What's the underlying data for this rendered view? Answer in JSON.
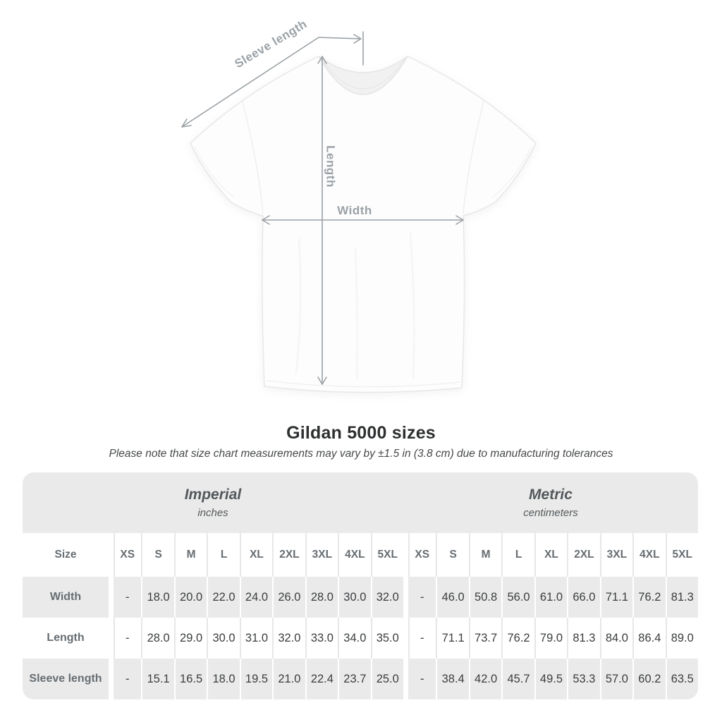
{
  "title": "Gildan 5000 sizes",
  "subtitle": "Please note that size chart measurements may vary by ±1.5 in (3.8 cm) due to manufacturing tolerances",
  "diagram": {
    "sleeve_label": "Sleeve length",
    "length_label": "Length",
    "width_label": "Width",
    "line_color": "#9ba1a6",
    "shirt_color": "#fdfdfd"
  },
  "table": {
    "corner_label": "Size",
    "band_color": "#eaeaea",
    "sections": [
      {
        "name": "Imperial",
        "unit": "inches"
      },
      {
        "name": "Metric",
        "unit": "centimeters"
      }
    ],
    "sizes": [
      "XS",
      "S",
      "M",
      "L",
      "XL",
      "2XL",
      "3XL",
      "4XL",
      "5XL"
    ],
    "rows": [
      {
        "label": "Width",
        "imperial": [
          "-",
          "18.0",
          "20.0",
          "22.0",
          "24.0",
          "26.0",
          "28.0",
          "30.0",
          "32.0"
        ],
        "metric": [
          "-",
          "46.0",
          "50.8",
          "56.0",
          "61.0",
          "66.0",
          "71.1",
          "76.2",
          "81.3"
        ]
      },
      {
        "label": "Length",
        "imperial": [
          "-",
          "28.0",
          "29.0",
          "30.0",
          "31.0",
          "32.0",
          "33.0",
          "34.0",
          "35.0"
        ],
        "metric": [
          "-",
          "71.1",
          "73.7",
          "76.2",
          "79.0",
          "81.3",
          "84.0",
          "86.4",
          "89.0"
        ]
      },
      {
        "label": "Sleeve length",
        "imperial": [
          "-",
          "15.1",
          "16.5",
          "18.0",
          "19.5",
          "21.0",
          "22.4",
          "23.7",
          "25.0"
        ],
        "metric": [
          "-",
          "38.4",
          "42.0",
          "45.7",
          "49.5",
          "53.3",
          "57.0",
          "60.2",
          "63.5"
        ]
      }
    ]
  }
}
